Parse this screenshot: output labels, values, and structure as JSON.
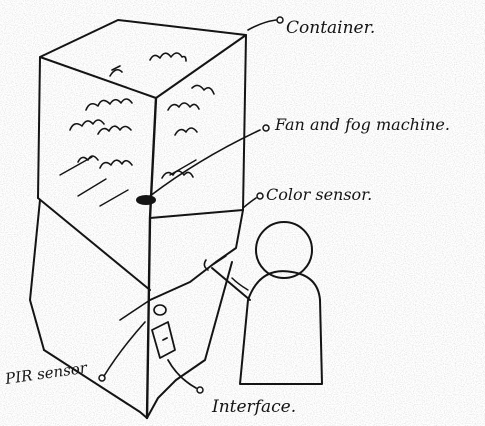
{
  "labels": {
    "container": "Container.",
    "fan_fog": "Fan and fog machine.",
    "color_sensor": "Color sensor.",
    "pir_sensor": "PIR sensor",
    "interface": "Interface."
  },
  "colors": {
    "paper": "#ffffff",
    "ink": "#141414",
    "speckle": "#9a9a9a"
  },
  "icons": {
    "fog_cloud": "cloud-squiggle",
    "person": "stick-figure-silhouette"
  }
}
